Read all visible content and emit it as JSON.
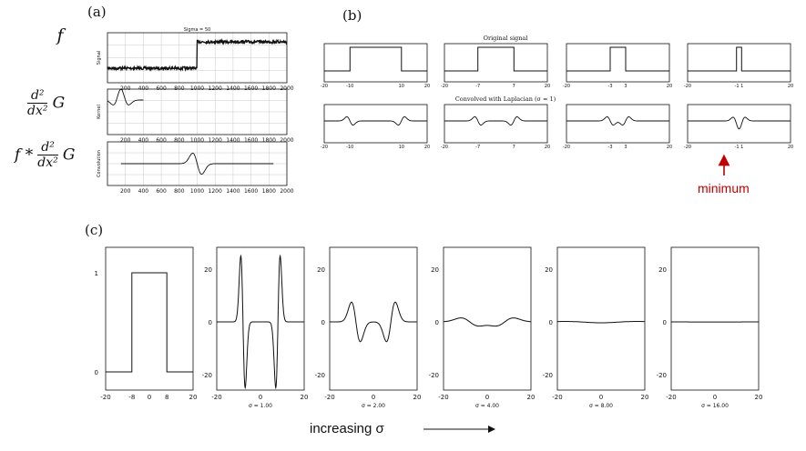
{
  "labels": {
    "a": "(a)",
    "b": "(b)",
    "c": "(c)"
  },
  "panel_a": {
    "eq_f": "f",
    "eq_num": "d²",
    "eq_den": "dx²",
    "eq_G": "G",
    "eq_fstar": "f *",
    "top_title": "Sigma = 50",
    "ylabels": [
      "Signal",
      "Kernel",
      "Convolution"
    ],
    "xticks": [
      "200",
      "400",
      "600",
      "800",
      "1000",
      "1200",
      "1400",
      "1600",
      "1800",
      "2000"
    ]
  },
  "panel_b": {
    "title_top": "Original signal",
    "title_bottom": "Convolved with Laplacian (σ = 1)",
    "annotation": "minimum",
    "widths": [
      10,
      7,
      3,
      1
    ],
    "tick_labels": [
      [
        "-20",
        "-10",
        "10",
        "20"
      ],
      [
        "-20",
        "-7",
        "7",
        "20"
      ],
      [
        "-20",
        "-3",
        "3",
        "20"
      ],
      [
        "-20",
        "-1 1",
        "20"
      ]
    ]
  },
  "panel_c": {
    "caption": "increasing σ",
    "x_ticks": [
      "-20",
      "0",
      "20"
    ],
    "first_x_ticks": [
      "-20",
      "-8",
      "0",
      "8",
      "20"
    ],
    "first_y_ticks": [
      "1",
      "0"
    ],
    "y_ticks": [
      "20",
      "0",
      "-20"
    ],
    "sigma_labels": [
      "σ = 1.00",
      "σ = 2.00",
      "σ = 4.00",
      "σ = 8.00",
      "σ = 16.00"
    ],
    "sigmas": [
      1,
      2,
      4,
      8,
      16
    ]
  },
  "colors": {
    "ink": "#111111",
    "accent": "#c00000",
    "grid": "#c8c8c8"
  }
}
